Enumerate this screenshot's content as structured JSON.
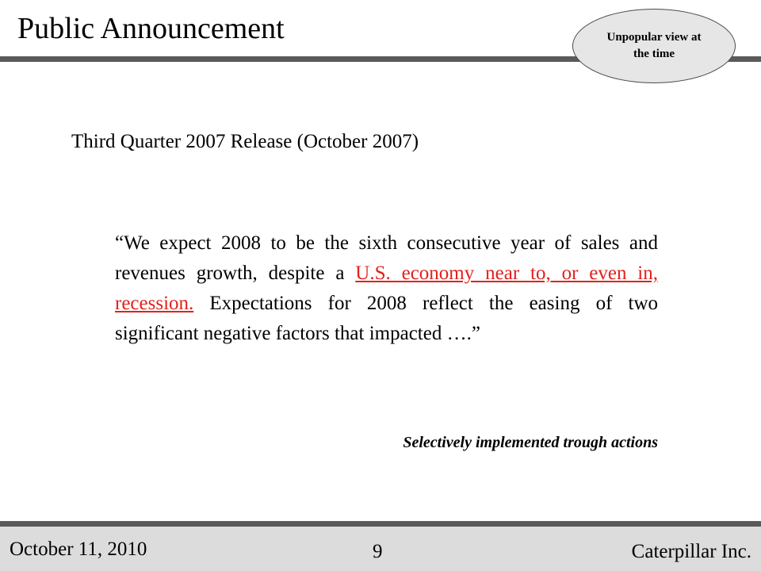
{
  "slide": {
    "title": "Public Announcement",
    "callout": "Unpopular view at the time",
    "subtitle": "Third Quarter 2007 Release (October 2007)",
    "quote": {
      "before": "“We expect 2008 to be the sixth consecutive year of sales and revenues growth, despite a ",
      "highlight": "U.S. economy near to, or even in, recession.",
      "after": "  Expectations for 2008 reflect the easing of two significant negative factors that impacted ….”"
    },
    "note": "Selectively implemented trough actions"
  },
  "footer": {
    "date": "October 11, 2010",
    "page": "9",
    "company": "Caterpillar Inc."
  },
  "colors": {
    "highlight": "#e2211c",
    "rule": "#5a5a5a",
    "footer_bg": "#dcdcdc",
    "callout_bg": "#e6e6e6"
  }
}
